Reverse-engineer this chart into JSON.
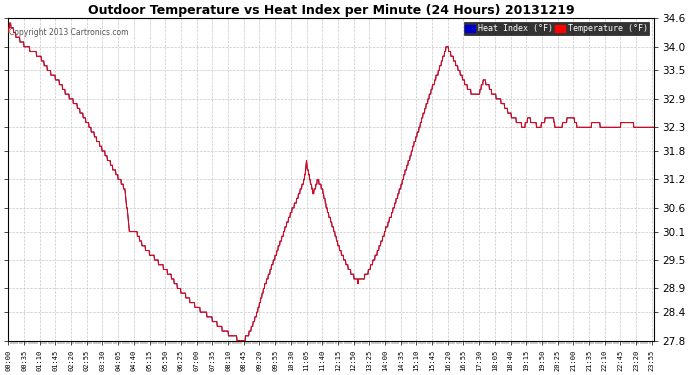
{
  "title": "Outdoor Temperature vs Heat Index per Minute (24 Hours) 20131219",
  "copyright": "Copyright 2013 Cartronics.com",
  "legend_heat_index": "Heat Index (°F)",
  "legend_temperature": "Temperature (°F)",
  "ylim_min": 27.8,
  "ylim_max": 34.6,
  "yticks": [
    27.8,
    28.4,
    28.9,
    29.5,
    30.1,
    30.6,
    31.2,
    31.8,
    32.3,
    32.9,
    33.5,
    34.0,
    34.6
  ],
  "bg_color": "#ffffff",
  "plot_bg_color": "#ffffff",
  "grid_color": "#c8c8c8",
  "line_color_temp": "#ff0000",
  "line_color_heat": "#00008b",
  "legend_heat_bg": "#0000cc",
  "legend_temp_bg": "#ff0000"
}
